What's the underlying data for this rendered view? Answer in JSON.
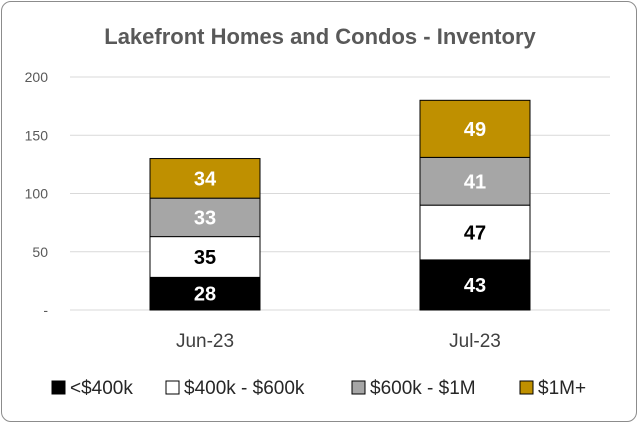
{
  "chart_data": {
    "type": "bar",
    "stacked": true,
    "title": "Lakefront Homes and Condos - Inventory",
    "categories": [
      "Jun-23",
      "Jul-23"
    ],
    "series": [
      {
        "name": "<$400k",
        "values": [
          28,
          43
        ],
        "color": "#000000",
        "label_color": "#ffffff"
      },
      {
        "name": "$400k - $600k",
        "values": [
          35,
          47
        ],
        "color": "#ffffff",
        "label_color": "#000000"
      },
      {
        "name": "$600k - $1M",
        "values": [
          33,
          41
        ],
        "color": "#a6a6a6",
        "label_color": "#ffffff"
      },
      {
        "name": "$1M+",
        "values": [
          34,
          49
        ],
        "color": "#bf9000",
        "label_color": "#ffffff"
      }
    ],
    "ylim": [
      0,
      200
    ],
    "yticks": [
      0,
      50,
      100,
      150,
      200
    ],
    "ytick_labels": [
      "-",
      "50",
      "100",
      "150",
      "200"
    ],
    "grid": true,
    "legend_position": "bottom"
  }
}
